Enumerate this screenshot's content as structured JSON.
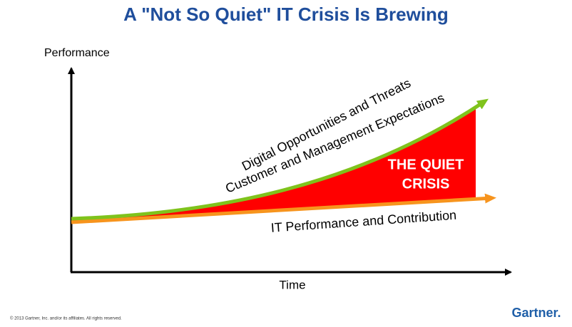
{
  "header": {
    "title": "A \"Not So Quiet\" IT Crisis Is Brewing"
  },
  "axes": {
    "y_label": "Performance",
    "x_label": "Time"
  },
  "curves": {
    "upper_1": "Digital Opportunities and Threats",
    "upper_2": "Customer and Management Expectations",
    "lower": "IT Performance and Contribution"
  },
  "gap": {
    "line_1": "THE QUIET",
    "line_2": "CRISIS"
  },
  "footer": {
    "copyright": "© 2013 Gartner, Inc. and/or its affiliates. All rights reserved.",
    "brand": "Gartner."
  }
}
